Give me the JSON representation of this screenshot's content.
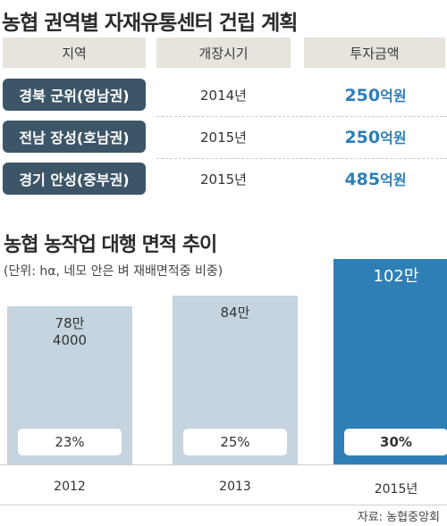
{
  "title": "농협 권역별 자재유통센터 건립 계획",
  "table": {
    "headers": [
      "지역",
      "개장시기",
      "투자금액"
    ],
    "rows": [
      {
        "region": "경북 군위(영남권)",
        "period": "2014년",
        "amount_value": "250",
        "amount_unit": "억원"
      },
      {
        "region": "전남 장성(호남권)",
        "period": "2015년",
        "amount_value": "250",
        "amount_unit": "억원"
      },
      {
        "region": "경기 안성(중부권)",
        "period": "2015년",
        "amount_value": "485",
        "amount_unit": "억원"
      }
    ]
  },
  "chart_data": {
    "type": "bar",
    "title": "농협 농작업 대행 면적 추이",
    "subtitle": "(단위: hα, 네모 안은 벼 재배면적중 비중)",
    "categories": [
      "2012",
      "2013",
      "2015년"
    ],
    "values": [
      784000,
      840000,
      1020000
    ],
    "value_labels": [
      "78만\n4000",
      "84만",
      "102만"
    ],
    "share_labels": [
      "23%",
      "25%",
      "30%"
    ],
    "colors": [
      "#c5d4de",
      "#c5d4de",
      "#2f7fb7"
    ],
    "ylim": [
      0,
      1020000
    ]
  },
  "source": "자료: 농협중앙회"
}
